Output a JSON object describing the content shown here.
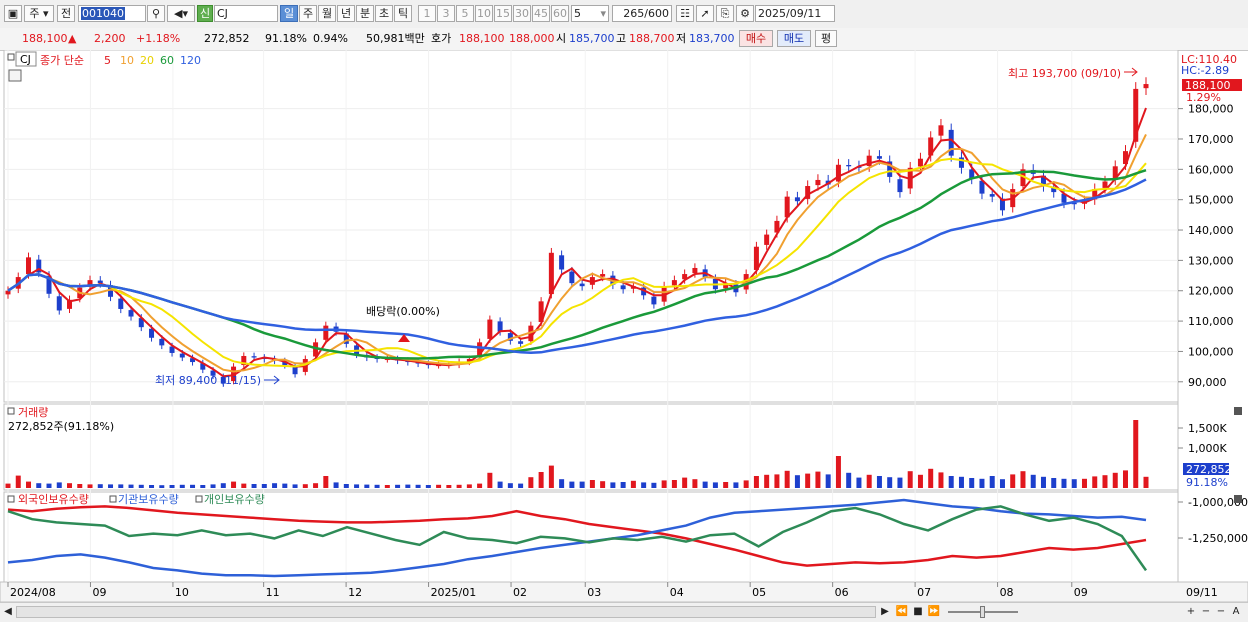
{
  "toolbar": {
    "market_label": "주",
    "prev_label": "전",
    "code": "001040",
    "badge": "신",
    "name": "CJ",
    "periods": [
      "일",
      "주",
      "월",
      "년",
      "분",
      "초",
      "틱"
    ],
    "active_period": "일",
    "intervals": [
      "1",
      "3",
      "5",
      "10",
      "15",
      "30",
      "45",
      "60"
    ],
    "count_value": "5",
    "bars": "265",
    "bars_total": "/600",
    "date": "2025/09/11"
  },
  "quote": {
    "price": "188,100",
    "arrow": "▲",
    "change": "2,200",
    "change_pct": "+1.18%",
    "volume": "272,852",
    "volume_ratio": "91.18%",
    "turnover_pct": "0.94%",
    "amount": "50,981백만",
    "hoga_label": "호가",
    "ask": "188,100",
    "bid": "188,000",
    "open_label": "시",
    "open": "185,700",
    "high_label": "고",
    "high": "188,700",
    "low_label": "저",
    "low": "183,700",
    "buy_button": "매수",
    "sell_button": "매도",
    "eval_button": "평"
  },
  "price_panel": {
    "ticker_tag": "CJ",
    "legend_title": "종가 단순",
    "ma_periods": [
      "5",
      "10",
      "20",
      "60",
      "120"
    ],
    "lc_label": "LC:110.40",
    "hc_label": "HC:-2.89",
    "last_price": "188,100",
    "last_pct": "1.29%",
    "high_marker": "최고 193,700 (09/10)",
    "low_marker": "최저 89,400 (11/15)",
    "dividend_marker": "배당락(0.00%)"
  },
  "volume_panel": {
    "title": "거래량",
    "summary": "272,852주(91.18%)",
    "last_value": "272,852",
    "last_pct": "91.18%"
  },
  "holding_panel": {
    "foreign_label": "외국인보유수량",
    "inst_label": "기관보유수량",
    "retail_label": "개인보유수량"
  },
  "colors": {
    "up": "#e1171e",
    "down": "#1d3fcc",
    "ma5": "#e1171e",
    "ma10": "#f0a030",
    "ma20": "#f5e400",
    "ma60": "#1a9a3a",
    "ma120": "#3060e0",
    "foreign": "#e1171e",
    "institution": "#2e60d8",
    "retail": "#2e8b57"
  },
  "chart_data": [
    {
      "type": "candlestick",
      "ma_periods": [
        5,
        10,
        20,
        60,
        120
      ],
      "y_ticks": [
        "180,000",
        "170,000",
        "160,000",
        "150,000",
        "140,000",
        "130,000",
        "120,000",
        "110,000",
        "100,000",
        "90,000"
      ],
      "ylim": [
        84000,
        198000
      ],
      "x_ticks": [
        "2024/08",
        "09",
        "10",
        "11",
        "12",
        "2025/01",
        "02",
        "03",
        "04",
        "05",
        "06",
        "07",
        "08",
        "09"
      ],
      "last_x_label": "09/11",
      "series": [
        {
          "name": "종가",
          "values": [
            120000,
            124500,
            131000,
            126000,
            119000,
            113500,
            117000,
            121000,
            123500,
            122500,
            118000,
            114000,
            111500,
            108000,
            104500,
            102000,
            99500,
            98000,
            96500,
            94000,
            92000,
            89400,
            95000,
            98500,
            98000,
            97500,
            97000,
            95500,
            92500,
            97500,
            103000,
            108500,
            106500,
            102500,
            99000,
            98000,
            97500,
            97500,
            97000,
            96500,
            96000,
            95500,
            95500,
            95500,
            96500,
            97500,
            103000,
            110500,
            106500,
            103500,
            102500,
            108500,
            116500,
            132500,
            127000,
            122500,
            121500,
            124500,
            125500,
            122000,
            120500,
            121500,
            118500,
            115500,
            121500,
            123500,
            125500,
            127500,
            124500,
            120500,
            122500,
            119500,
            125500,
            134500,
            138500,
            143000,
            151000,
            149500,
            154500,
            156500,
            155000,
            161500,
            161000,
            160500,
            164500,
            163500,
            157500,
            152500,
            160500,
            163500,
            170500,
            174500,
            164500,
            160500,
            157000,
            152000,
            151000,
            146500,
            153500,
            160000,
            158500,
            154500,
            152500,
            149000,
            148500,
            149500,
            153500,
            156000,
            161000,
            166000,
            186500,
            188100
          ]
        }
      ]
    },
    {
      "type": "bar",
      "title": "거래량",
      "y_ticks": [
        "1,500K",
        "1,000K"
      ],
      "ylim": [
        0,
        1950000
      ],
      "series": [
        {
          "name": "거래량",
          "values": [
            110000,
            310000,
            160000,
            120000,
            110000,
            140000,
            120000,
            100000,
            90000,
            95000,
            90000,
            90000,
            85000,
            80000,
            75000,
            70000,
            75000,
            80000,
            80000,
            75000,
            90000,
            120000,
            160000,
            110000,
            100000,
            100000,
            120000,
            110000,
            90000,
            95000,
            120000,
            300000,
            140000,
            100000,
            90000,
            85000,
            80000,
            75000,
            80000,
            85000,
            80000,
            75000,
            80000,
            75000,
            80000,
            90000,
            110000,
            380000,
            160000,
            120000,
            110000,
            270000,
            400000,
            560000,
            220000,
            160000,
            160000,
            200000,
            170000,
            140000,
            150000,
            180000,
            140000,
            130000,
            190000,
            200000,
            260000,
            220000,
            160000,
            140000,
            150000,
            140000,
            190000,
            300000,
            330000,
            340000,
            430000,
            320000,
            360000,
            410000,
            340000,
            800000,
            380000,
            260000,
            330000,
            300000,
            270000,
            260000,
            420000,
            330000,
            480000,
            390000,
            300000,
            280000,
            250000,
            230000,
            300000,
            220000,
            340000,
            420000,
            330000,
            280000,
            250000,
            230000,
            220000,
            230000,
            290000,
            320000,
            380000,
            440000,
            1700000,
            280000
          ]
        }
      ]
    },
    {
      "type": "line",
      "y_ticks": [
        "-1,000,000",
        "-1,250,000"
      ],
      "series": [
        {
          "name": "외국인보유수량",
          "values": [
            0.88,
            0.86,
            0.89,
            0.91,
            0.92,
            0.9,
            0.87,
            0.84,
            0.82,
            0.8,
            0.78,
            0.76,
            0.74,
            0.73,
            0.72,
            0.72,
            0.73,
            0.74,
            0.76,
            0.77,
            0.8,
            0.86,
            0.8,
            0.76,
            0.7,
            0.66,
            0.62,
            0.58,
            0.52,
            0.45,
            0.38,
            0.3,
            0.22,
            0.18,
            0.2,
            0.22,
            0.21,
            0.22,
            0.25,
            0.3,
            0.28,
            0.3,
            0.35,
            0.4,
            0.38,
            0.4,
            0.45,
            0.5
          ]
        },
        {
          "name": "기관보유수량",
          "values": [
            0.22,
            0.25,
            0.3,
            0.32,
            0.28,
            0.22,
            0.15,
            0.12,
            0.08,
            0.06,
            0.06,
            0.05,
            0.06,
            0.07,
            0.08,
            0.09,
            0.12,
            0.16,
            0.2,
            0.26,
            0.3,
            0.35,
            0.4,
            0.44,
            0.48,
            0.52,
            0.56,
            0.62,
            0.68,
            0.78,
            0.84,
            0.86,
            0.88,
            0.9,
            0.92,
            0.94,
            0.97,
            1.0,
            0.96,
            0.92,
            0.9,
            0.86,
            0.83,
            0.82,
            0.8,
            0.78,
            0.79,
            0.75
          ]
        },
        {
          "name": "개인보유수량",
          "values": [
            0.86,
            0.76,
            0.72,
            0.7,
            0.68,
            0.55,
            0.58,
            0.56,
            0.62,
            0.56,
            0.58,
            0.52,
            0.62,
            0.55,
            0.66,
            0.58,
            0.5,
            0.44,
            0.6,
            0.52,
            0.5,
            0.46,
            0.54,
            0.52,
            0.47,
            0.52,
            0.5,
            0.54,
            0.48,
            0.56,
            0.58,
            0.42,
            0.6,
            0.72,
            0.86,
            0.9,
            0.82,
            0.7,
            0.62,
            0.76,
            0.88,
            0.92,
            0.82,
            0.74,
            0.78,
            0.7,
            0.55,
            0.12
          ]
        }
      ]
    }
  ]
}
